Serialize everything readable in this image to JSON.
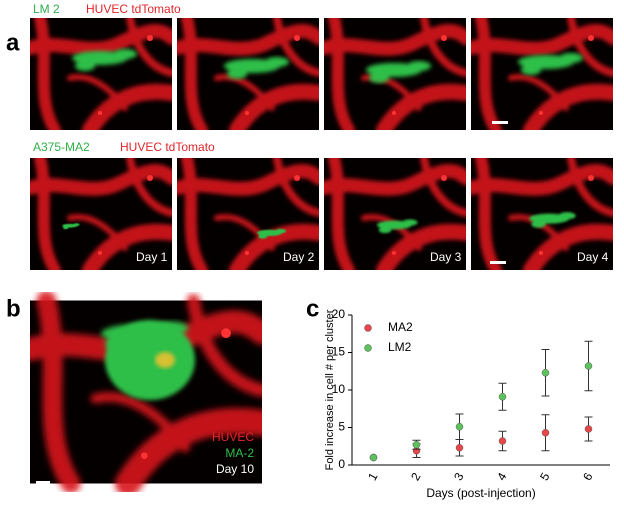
{
  "figure": {
    "panel_labels": [
      "a",
      "b",
      "c"
    ],
    "row1": {
      "cell": "LM 2",
      "vessel": "HUVEC tdTomato"
    },
    "row2": {
      "cell": "A375-MA2",
      "vessel": "HUVEC tdTomato"
    },
    "days": [
      "Day 1",
      "Day 2",
      "Day 3",
      "Day 4"
    ],
    "panel_b": {
      "vessel": "HUVEC",
      "cell": "MA-2",
      "day": "Day 10"
    }
  },
  "chart_data": {
    "type": "scatter",
    "x_label": "Days (post-injection)",
    "y_label": "Fold increase in cell # per cluster",
    "categories": [
      "1",
      "2",
      "3",
      "4",
      "5",
      "6"
    ],
    "series": [
      {
        "name": "MA2",
        "color": "#e8474a",
        "values": [
          1.0,
          1.9,
          2.3,
          3.2,
          4.3,
          4.8
        ],
        "errors": [
          null,
          0.9,
          1.1,
          1.3,
          2.4,
          1.6
        ]
      },
      {
        "name": "LM2",
        "color": "#5cc35c",
        "values": [
          1.0,
          2.7,
          5.1,
          9.1,
          12.3,
          13.2
        ],
        "errors": [
          null,
          0.6,
          1.7,
          1.8,
          3.1,
          3.3
        ]
      }
    ],
    "ylim": [
      0,
      20
    ],
    "yticks": [
      0,
      5,
      10,
      15,
      20
    ]
  }
}
